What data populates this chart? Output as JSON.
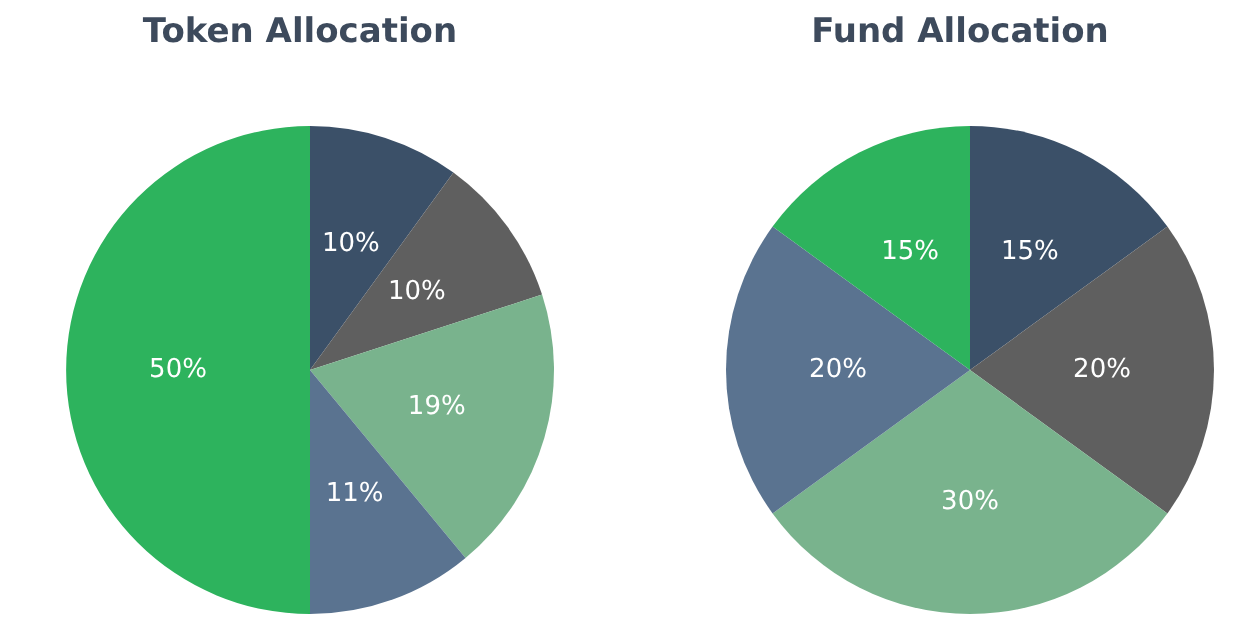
{
  "chart_data": [
    {
      "type": "pie",
      "title": "Token Allocation",
      "categories": [
        null,
        null,
        null,
        null,
        null
      ],
      "values": [
        10,
        10,
        19,
        11,
        50
      ],
      "value_labels": [
        "10%",
        "10%",
        "19%",
        "11%",
        "50%"
      ],
      "colors": [
        "#3b5068",
        "#5f5f5f",
        "#79b38d",
        "#5a7390",
        "#2db35d"
      ]
    },
    {
      "type": "pie",
      "title": "Fund Allocation",
      "categories": [
        null,
        null,
        null,
        null,
        null
      ],
      "values": [
        15,
        20,
        30,
        20,
        15
      ],
      "value_labels": [
        "15%",
        "20%",
        "30%",
        "20%",
        "15%"
      ],
      "colors": [
        "#3b5068",
        "#5f5f5f",
        "#79b38d",
        "#5a7390",
        "#2db35d"
      ]
    }
  ]
}
